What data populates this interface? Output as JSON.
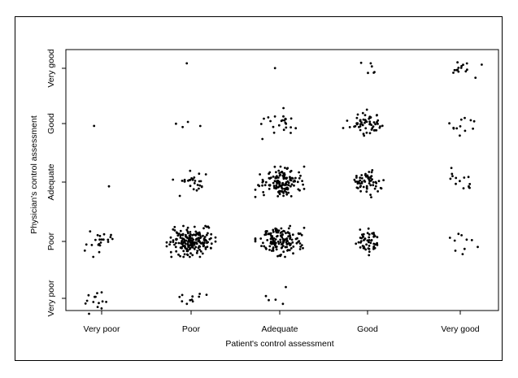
{
  "chart_data": {
    "type": "scatter",
    "title": "",
    "xlabel": "Patient's control assessment",
    "ylabel": "Physician's control assessment",
    "x_categories": [
      "Very poor",
      "Poor",
      "Adequate",
      "Good",
      "Very good"
    ],
    "y_categories": [
      "Very poor",
      "Poor",
      "Adequate",
      "Good",
      "Very good"
    ],
    "jitter": true,
    "grid": false,
    "legend": "none",
    "point_color": "#000000",
    "cells": [
      {
        "x": "Very poor",
        "y": "Very good",
        "count": 0
      },
      {
        "x": "Very poor",
        "y": "Good",
        "count": 1
      },
      {
        "x": "Very poor",
        "y": "Adequate",
        "count": 1
      },
      {
        "x": "Very poor",
        "y": "Poor",
        "count": 22
      },
      {
        "x": "Very poor",
        "y": "Very poor",
        "count": 14
      },
      {
        "x": "Poor",
        "y": "Very good",
        "count": 1
      },
      {
        "x": "Poor",
        "y": "Good",
        "count": 4
      },
      {
        "x": "Poor",
        "y": "Adequate",
        "count": 28
      },
      {
        "x": "Poor",
        "y": "Poor",
        "count": 190
      },
      {
        "x": "Poor",
        "y": "Very poor",
        "count": 11
      },
      {
        "x": "Adequate",
        "y": "Very good",
        "count": 1
      },
      {
        "x": "Adequate",
        "y": "Good",
        "count": 24
      },
      {
        "x": "Adequate",
        "y": "Adequate",
        "count": 140
      },
      {
        "x": "Adequate",
        "y": "Poor",
        "count": 150
      },
      {
        "x": "Adequate",
        "y": "Very poor",
        "count": 5
      },
      {
        "x": "Good",
        "y": "Very good",
        "count": 6
      },
      {
        "x": "Good",
        "y": "Good",
        "count": 60
      },
      {
        "x": "Good",
        "y": "Adequate",
        "count": 60
      },
      {
        "x": "Good",
        "y": "Poor",
        "count": 50
      },
      {
        "x": "Good",
        "y": "Very poor",
        "count": 0
      },
      {
        "x": "Very good",
        "y": "Very good",
        "count": 15
      },
      {
        "x": "Very good",
        "y": "Good",
        "count": 12
      },
      {
        "x": "Very good",
        "y": "Adequate",
        "count": 14
      },
      {
        "x": "Very good",
        "y": "Poor",
        "count": 10
      },
      {
        "x": "Very good",
        "y": "Very poor",
        "count": 0
      }
    ]
  }
}
